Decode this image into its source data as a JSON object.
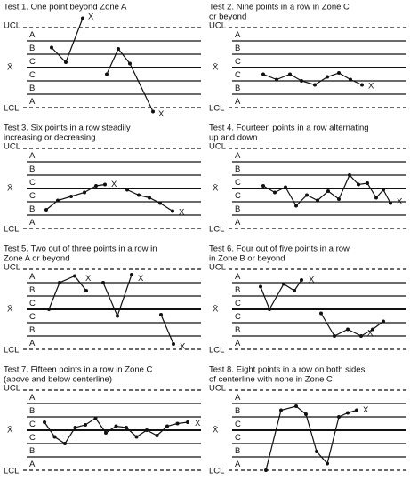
{
  "panels": [
    {
      "title_lines": [
        "Test 1. One point beyond Zone A"
      ]
    },
    {
      "title_lines": [
        "Test 2. Nine points in a row in Zone C",
        "or beyond"
      ]
    },
    {
      "title_lines": [
        "Test 3. Six points in a row steadily",
        "increasing or decreasing"
      ]
    },
    {
      "title_lines": [
        "Test 4. Fourteen points in a row alternating",
        "up and down"
      ]
    },
    {
      "title_lines": [
        "Test 5. Two out of three points in a row in",
        "Zone A or beyond"
      ]
    },
    {
      "title_lines": [
        "Test 6. Four out of five points in a row",
        "in Zone B or beyond"
      ]
    },
    {
      "title_lines": [
        "Test 7. Fifteen points in a row in Zone C",
        "(above and below centerline)"
      ]
    },
    {
      "title_lines": [
        "Test 8. Eight points in a row on both sides",
        "of centerline with none in Zone C"
      ]
    }
  ],
  "limit_labels": {
    "upper": "UCL",
    "lower": "LCL",
    "center": "X̄"
  },
  "zone_labels": [
    "A",
    "B",
    "C",
    "C",
    "B",
    "A"
  ],
  "flag_label": "X"
}
